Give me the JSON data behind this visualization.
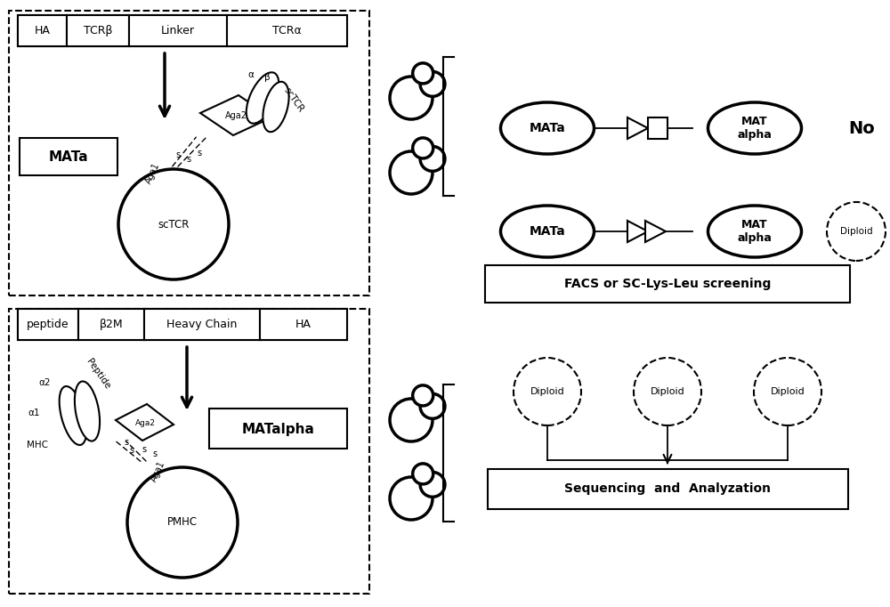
{
  "bg_color": "#ffffff",
  "top_box1_labels": [
    "HA",
    "TCRβ",
    "Linker",
    "TCRα"
  ],
  "top_box2_labels": [
    "peptide",
    "β2M",
    "Heavy Chain",
    "HA"
  ],
  "mata_label": "MATa",
  "matalpha_label": "MATalpha",
  "sctcr_label": "scTCR",
  "pmhc_label": "PMHC",
  "no_label": "No",
  "diploid_label": "Diploid",
  "facs_label": "FACS or SC-Lys-Leu screening",
  "seq_label": "Sequencing  and  Analyzation",
  "mat_alpha_label": "MAT\nalpha",
  "alpha1_label": "α1",
  "alpha2_label": "α2",
  "alpha_label": "α",
  "beta_label": "β",
  "mhc_label": "MHC",
  "peptide_label": "Peptide"
}
